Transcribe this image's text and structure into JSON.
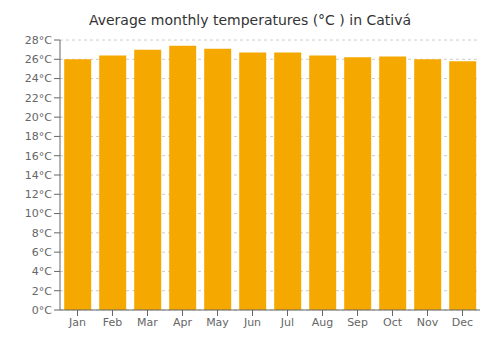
{
  "chart_data": {
    "type": "bar",
    "title": "Average monthly temperatures (°C ) in Cativá",
    "categories": [
      "Jan",
      "Feb",
      "Mar",
      "Apr",
      "May",
      "Jun",
      "Jul",
      "Aug",
      "Sep",
      "Oct",
      "Nov",
      "Dec"
    ],
    "values": [
      26.0,
      26.4,
      27.0,
      27.4,
      27.1,
      26.7,
      26.7,
      26.4,
      26.2,
      26.3,
      26.0,
      25.8
    ],
    "color": "#F5A800",
    "ylim": [
      0,
      28
    ],
    "yticks": [
      {
        "value": 0,
        "label": "0°C"
      },
      {
        "value": 2,
        "label": "2°C"
      },
      {
        "value": 4,
        "label": "4°C"
      },
      {
        "value": 6,
        "label": "6°C"
      },
      {
        "value": 8,
        "label": "8°C"
      },
      {
        "value": 10,
        "label": "10°C"
      },
      {
        "value": 12,
        "label": "12°C"
      },
      {
        "value": 14,
        "label": "14°C"
      },
      {
        "value": 16,
        "label": "16°C"
      },
      {
        "value": 18,
        "label": "18°C"
      },
      {
        "value": 20,
        "label": "20°C"
      },
      {
        "value": 22,
        "label": "22°C"
      },
      {
        "value": 24,
        "label": "24°C"
      },
      {
        "value": 26,
        "label": "26°C"
      },
      {
        "value": 28,
        "label": "28°C"
      }
    ],
    "grid": true
  }
}
